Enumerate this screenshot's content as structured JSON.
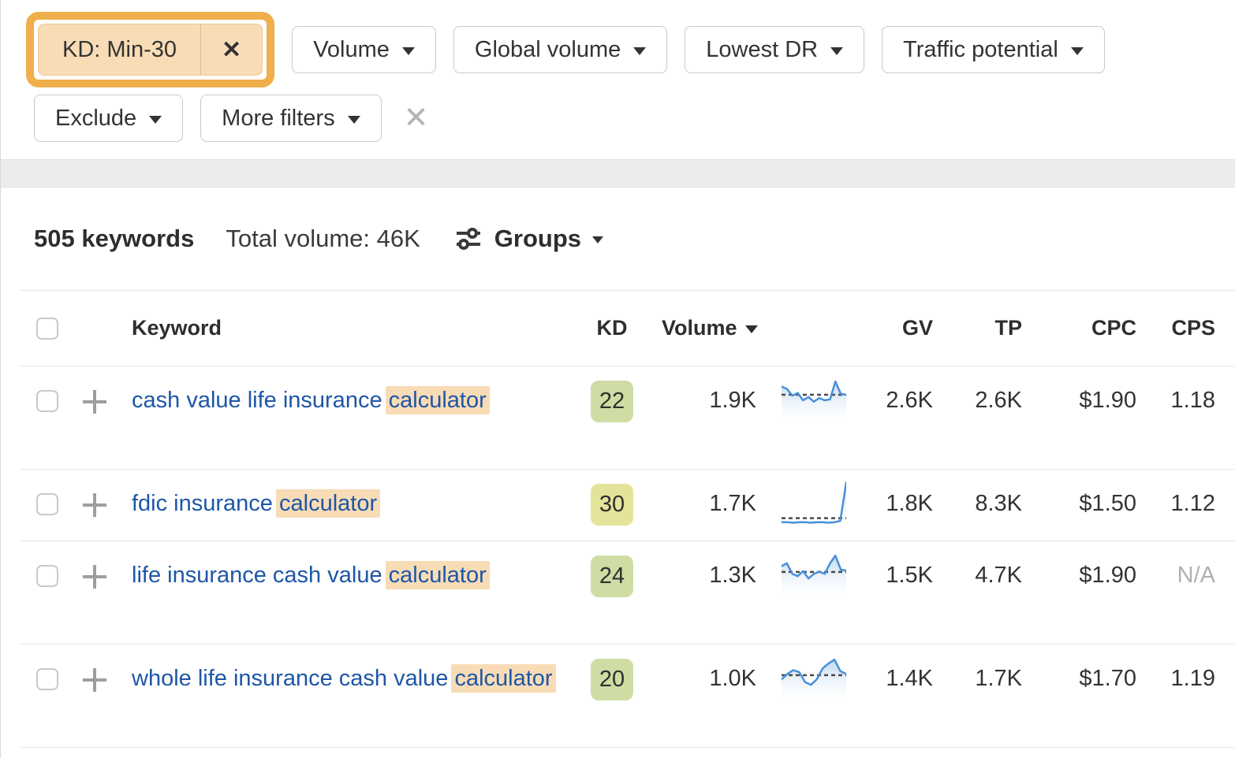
{
  "icons": {
    "close": "✕",
    "clear": "✕"
  },
  "colors": {
    "annotation_orange": "#f0ae4d",
    "chip_bg": "#f8dcb6",
    "highlight_bg": "#f8dcb6",
    "link_blue": "#1e56a7",
    "kd_green": "#cfdda5",
    "kd_yellow": "#e4e39a",
    "spark_line": "#4a8fd8",
    "spark_fill_top": "#b9d3ee"
  },
  "filters": {
    "active_chip": {
      "label": "KD: Min-30"
    },
    "buttons_row1": [
      {
        "label": "Volume"
      },
      {
        "label": "Global volume"
      },
      {
        "label": "Lowest DR"
      },
      {
        "label": "Traffic potential"
      }
    ],
    "buttons_row2": [
      {
        "label": "Exclude"
      },
      {
        "label": "More filters"
      }
    ]
  },
  "summary": {
    "keywords_count": "505 keywords",
    "total_volume": "Total volume: 46K",
    "groups_label": "Groups"
  },
  "table": {
    "columns": {
      "keyword": "Keyword",
      "kd": "KD",
      "volume": "Volume",
      "gv": "GV",
      "tp": "TP",
      "cpc": "CPC",
      "cps": "CPS"
    },
    "rows": [
      {
        "keyword_pre": "cash value life insurance ",
        "keyword_highlight": "calculator",
        "kd": "22",
        "kd_level": "green",
        "volume": "1.9K",
        "gv": "2.6K",
        "tp": "2.6K",
        "cpc": "$1.90",
        "cps": "1.18",
        "lines": 2,
        "trend": [
          80,
          75,
          60,
          66,
          50,
          57,
          47,
          55,
          50,
          52,
          91,
          64,
          62
        ],
        "trend_baseline": 62
      },
      {
        "keyword_pre": "fdic insurance ",
        "keyword_highlight": "calculator",
        "kd": "30",
        "kd_level": "yellow",
        "volume": "1.7K",
        "gv": "1.8K",
        "tp": "8.3K",
        "cpc": "$1.50",
        "cps": "1.12",
        "lines": 1,
        "trend": [
          9,
          9,
          8,
          9,
          9,
          8,
          9,
          9,
          8,
          9,
          12,
          96
        ],
        "trend_baseline": 18
      },
      {
        "keyword_pre": "life insurance cash value ",
        "keyword_highlight": "calculator",
        "kd": "24",
        "kd_level": "green",
        "volume": "1.3K",
        "gv": "1.5K",
        "tp": "4.7K",
        "cpc": "$1.90",
        "cps": "N/A",
        "lines": 2,
        "trend": [
          70,
          76,
          53,
          48,
          59,
          43,
          53,
          58,
          53,
          76,
          93,
          62,
          60
        ],
        "trend_baseline": 57
      },
      {
        "keyword_pre": "whole life insurance cash value ",
        "keyword_highlight": "calculator",
        "kd": "20",
        "kd_level": "green",
        "volume": "1.0K",
        "gv": "1.4K",
        "tp": "1.7K",
        "cpc": "$1.70",
        "cps": "1.19",
        "lines": 2,
        "trend": [
          48,
          60,
          68,
          64,
          42,
          36,
          48,
          72,
          83,
          91,
          66,
          60
        ],
        "trend_baseline": 57
      }
    ]
  }
}
